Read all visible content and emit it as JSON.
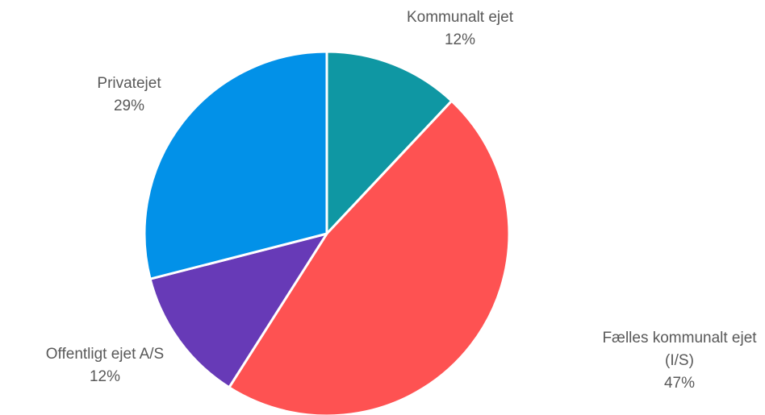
{
  "chart_data": {
    "type": "pie",
    "categories": [
      "Kommunalt ejet",
      "Fælles kommunalt ejet (I/S)",
      "Offentligt ejet A/S",
      "Privatejet"
    ],
    "values": [
      12,
      47,
      12,
      29
    ],
    "value_labels": [
      "12%",
      "47%",
      "12%",
      "29%"
    ],
    "colors": [
      "#0f97a3",
      "#fe5252",
      "#673ab7",
      "#0291e8"
    ]
  }
}
